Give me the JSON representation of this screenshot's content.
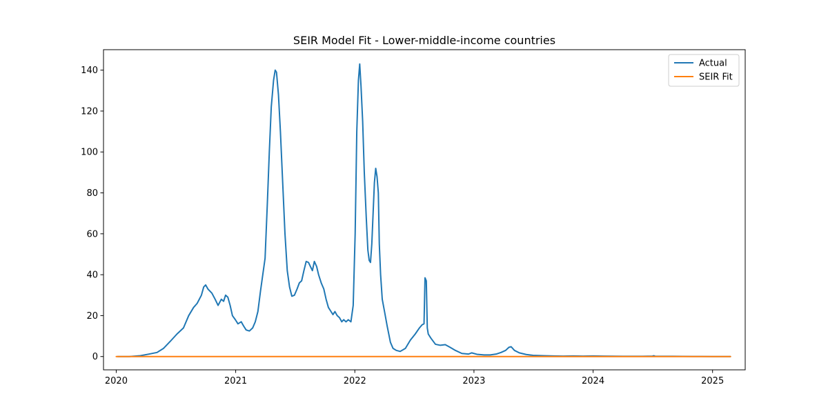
{
  "chart_data": {
    "type": "line",
    "title": "SEIR Model Fit - Lower-middle-income countries",
    "xlabel": "",
    "ylabel": "",
    "x_axis": {
      "type": "date",
      "range": [
        "2019-11-23",
        "2025-04-11"
      ],
      "ticks": [
        {
          "date": "2020-01-01",
          "label": "2020"
        },
        {
          "date": "2021-01-01",
          "label": "2021"
        },
        {
          "date": "2022-01-01",
          "label": "2022"
        },
        {
          "date": "2023-01-01",
          "label": "2023"
        },
        {
          "date": "2024-01-01",
          "label": "2024"
        },
        {
          "date": "2025-01-01",
          "label": "2025"
        }
      ]
    },
    "y_axis": {
      "range": [
        -6.5,
        150
      ],
      "ticks": [
        0,
        20,
        40,
        60,
        80,
        100,
        120,
        140
      ]
    },
    "grid": false,
    "legend": {
      "placement": "top-right"
    },
    "series": [
      {
        "name": "Actual",
        "color": "#1f77b4",
        "points": [
          [
            "2020-01-05",
            0
          ],
          [
            "2020-02-10",
            0
          ],
          [
            "2020-03-15",
            0.4
          ],
          [
            "2020-04-10",
            1.2
          ],
          [
            "2020-05-05",
            2
          ],
          [
            "2020-05-25",
            4
          ],
          [
            "2020-06-15",
            7.5
          ],
          [
            "2020-07-05",
            11
          ],
          [
            "2020-07-25",
            14
          ],
          [
            "2020-08-10",
            20
          ],
          [
            "2020-08-25",
            24
          ],
          [
            "2020-09-05",
            26
          ],
          [
            "2020-09-18",
            30
          ],
          [
            "2020-09-25",
            34
          ],
          [
            "2020-10-01",
            35
          ],
          [
            "2020-10-08",
            33
          ],
          [
            "2020-10-20",
            31
          ],
          [
            "2020-10-30",
            28
          ],
          [
            "2020-11-08",
            25
          ],
          [
            "2020-11-18",
            28
          ],
          [
            "2020-11-25",
            27
          ],
          [
            "2020-12-01",
            30
          ],
          [
            "2020-12-08",
            29
          ],
          [
            "2020-12-15",
            25
          ],
          [
            "2020-12-22",
            20
          ],
          [
            "2020-12-31",
            18
          ],
          [
            "2021-01-08",
            16
          ],
          [
            "2021-01-18",
            17
          ],
          [
            "2021-01-25",
            15
          ],
          [
            "2021-02-02",
            13
          ],
          [
            "2021-02-12",
            12.5
          ],
          [
            "2021-02-22",
            14
          ],
          [
            "2021-03-02",
            17
          ],
          [
            "2021-03-10",
            22
          ],
          [
            "2021-03-18",
            32
          ],
          [
            "2021-03-25",
            40
          ],
          [
            "2021-04-01",
            48
          ],
          [
            "2021-04-08",
            75
          ],
          [
            "2021-04-14",
            100
          ],
          [
            "2021-04-20",
            122
          ],
          [
            "2021-04-27",
            135
          ],
          [
            "2021-05-02",
            140
          ],
          [
            "2021-05-06",
            139
          ],
          [
            "2021-05-12",
            128
          ],
          [
            "2021-05-18",
            110
          ],
          [
            "2021-05-25",
            85
          ],
          [
            "2021-06-01",
            60
          ],
          [
            "2021-06-08",
            42
          ],
          [
            "2021-06-15",
            34
          ],
          [
            "2021-06-22",
            29.5
          ],
          [
            "2021-06-30",
            30
          ],
          [
            "2021-07-08",
            33
          ],
          [
            "2021-07-15",
            36
          ],
          [
            "2021-07-22",
            37
          ],
          [
            "2021-07-29",
            42
          ],
          [
            "2021-08-05",
            46.5
          ],
          [
            "2021-08-12",
            46
          ],
          [
            "2021-08-18",
            44
          ],
          [
            "2021-08-24",
            42
          ],
          [
            "2021-08-30",
            46.5
          ],
          [
            "2021-09-06",
            44
          ],
          [
            "2021-09-12",
            40
          ],
          [
            "2021-09-20",
            36
          ],
          [
            "2021-09-28",
            33
          ],
          [
            "2021-10-05",
            28
          ],
          [
            "2021-10-12",
            24
          ],
          [
            "2021-10-20",
            22
          ],
          [
            "2021-10-26",
            20.5
          ],
          [
            "2021-11-01",
            22
          ],
          [
            "2021-11-08",
            20
          ],
          [
            "2021-11-15",
            19
          ],
          [
            "2021-11-22",
            17
          ],
          [
            "2021-11-28",
            18
          ],
          [
            "2021-12-05",
            17
          ],
          [
            "2021-12-12",
            18
          ],
          [
            "2021-12-20",
            17
          ],
          [
            "2021-12-27",
            25
          ],
          [
            "2022-01-02",
            60
          ],
          [
            "2022-01-07",
            110
          ],
          [
            "2022-01-12",
            135
          ],
          [
            "2022-01-16",
            143
          ],
          [
            "2022-01-20",
            132
          ],
          [
            "2022-01-25",
            115
          ],
          [
            "2022-01-30",
            90
          ],
          [
            "2022-02-05",
            68
          ],
          [
            "2022-02-10",
            52
          ],
          [
            "2022-02-14",
            47
          ],
          [
            "2022-02-18",
            46
          ],
          [
            "2022-02-22",
            55
          ],
          [
            "2022-02-26",
            70
          ],
          [
            "2022-03-02",
            85
          ],
          [
            "2022-03-06",
            92
          ],
          [
            "2022-03-10",
            88
          ],
          [
            "2022-03-14",
            80
          ],
          [
            "2022-03-17",
            55
          ],
          [
            "2022-03-21",
            40
          ],
          [
            "2022-03-26",
            28
          ],
          [
            "2022-04-02",
            22
          ],
          [
            "2022-04-10",
            15
          ],
          [
            "2022-04-20",
            7
          ],
          [
            "2022-04-28",
            4
          ],
          [
            "2022-05-08",
            3
          ],
          [
            "2022-05-20",
            2.5
          ],
          [
            "2022-06-05",
            4
          ],
          [
            "2022-06-20",
            8
          ],
          [
            "2022-07-05",
            11
          ],
          [
            "2022-07-18",
            14
          ],
          [
            "2022-07-26",
            15.5
          ],
          [
            "2022-08-01",
            16
          ],
          [
            "2022-08-04",
            38.5
          ],
          [
            "2022-08-08",
            37
          ],
          [
            "2022-08-11",
            14
          ],
          [
            "2022-08-14",
            11
          ],
          [
            "2022-08-22",
            9
          ],
          [
            "2022-09-05",
            6
          ],
          [
            "2022-09-20",
            5.5
          ],
          [
            "2022-10-05",
            5.8
          ],
          [
            "2022-10-20",
            4.5
          ],
          [
            "2022-11-05",
            3
          ],
          [
            "2022-11-25",
            1.5
          ],
          [
            "2022-12-15",
            1.2
          ],
          [
            "2022-12-25",
            1.8
          ],
          [
            "2023-01-10",
            1.1
          ],
          [
            "2023-02-01",
            0.8
          ],
          [
            "2023-02-20",
            0.8
          ],
          [
            "2023-03-10",
            1.2
          ],
          [
            "2023-03-25",
            2
          ],
          [
            "2023-04-08",
            3
          ],
          [
            "2023-04-18",
            4.5
          ],
          [
            "2023-04-25",
            4.8
          ],
          [
            "2023-05-05",
            3
          ],
          [
            "2023-05-20",
            1.8
          ],
          [
            "2023-06-10",
            1
          ],
          [
            "2023-07-01",
            0.6
          ],
          [
            "2023-08-01",
            0.4
          ],
          [
            "2023-09-01",
            0.3
          ],
          [
            "2023-10-01",
            0.2
          ],
          [
            "2023-11-01",
            0.3
          ],
          [
            "2023-12-01",
            0.2
          ],
          [
            "2024-01-01",
            0.3
          ],
          [
            "2024-02-01",
            0.2
          ],
          [
            "2024-04-01",
            0.1
          ],
          [
            "2024-06-01",
            0.1
          ],
          [
            "2024-07-01",
            0.2
          ],
          [
            "2024-07-05",
            0.4
          ],
          [
            "2024-07-10",
            0.1
          ],
          [
            "2024-09-01",
            0.1
          ],
          [
            "2024-11-01",
            0.05
          ],
          [
            "2025-01-01",
            0
          ],
          [
            "2025-02-25",
            0
          ]
        ]
      },
      {
        "name": "SEIR Fit",
        "color": "#ff7f0e",
        "points": [
          [
            "2020-01-01",
            0
          ],
          [
            "2025-02-25",
            0
          ]
        ]
      }
    ]
  }
}
